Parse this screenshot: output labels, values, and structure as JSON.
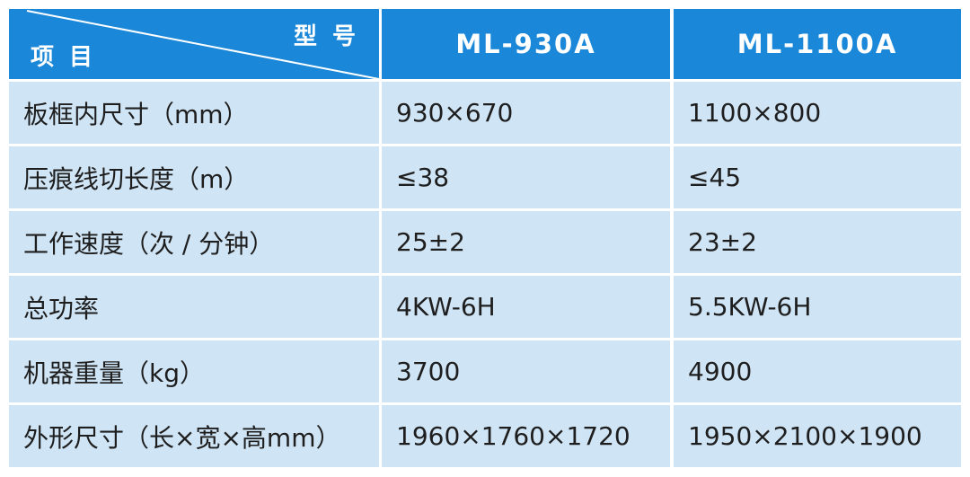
{
  "table": {
    "header": {
      "corner_top": "型 号",
      "corner_bottom": "项 目",
      "columns": [
        "ML-930A",
        "ML-1100A"
      ]
    },
    "rows": [
      [
        "板框内尺寸（mm）",
        "930×670",
        "1100×800"
      ],
      [
        "压痕线切长度（m）",
        "≤38",
        "≤45"
      ],
      [
        "工作速度（次 / 分钟）",
        "25±2",
        "23±2"
      ],
      [
        "总功率",
        "4KW-6H",
        "5.5KW-6H"
      ],
      [
        "机器重量（kg）",
        "3700",
        "4900"
      ],
      [
        "外形尺寸（长×宽×高mm）",
        "1960×1760×1720",
        "1950×2100×1900"
      ]
    ]
  }
}
